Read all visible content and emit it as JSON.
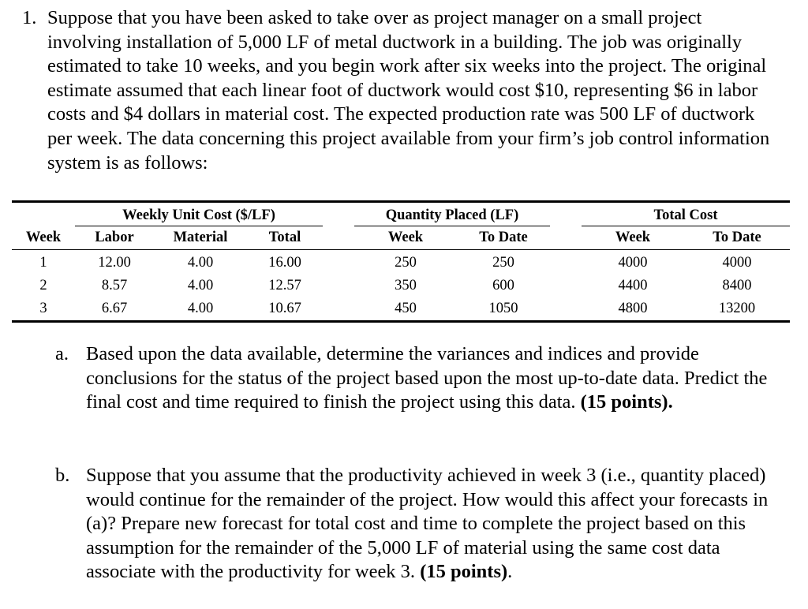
{
  "question": {
    "number": "1.",
    "text": "Suppose that you have been asked to take over as project manager on a small project involving installation of 5,000 LF of metal ductwork in a building. The job was originally estimated to take 10 weeks, and you begin work after six weeks into the project. The original estimate assumed that each linear foot of ductwork would cost $10, representing $6 in labor costs and $4 dollars in material cost. The expected production rate was 500 LF of ductwork per week. The data concerning this project available from your firm’s job control information system is as follows:"
  },
  "table": {
    "group_headers": {
      "unit_cost": "Weekly Unit Cost ($/LF)",
      "quantity": "Quantity Placed (LF)",
      "total_cost": "Total Cost"
    },
    "columns": {
      "week": "Week",
      "labor": "Labor",
      "material": "Material",
      "total": "Total",
      "qty_week": "Week",
      "qty_to_date": "To Date",
      "cost_week": "Week",
      "cost_to_date": "To Date"
    },
    "rows": [
      {
        "week": "1",
        "labor": "12.00",
        "material": "4.00",
        "total": "16.00",
        "qty_week": "250",
        "qty_to_date": "250",
        "cost_week": "4000",
        "cost_to_date": "4000"
      },
      {
        "week": "2",
        "labor": "8.57",
        "material": "4.00",
        "total": "12.57",
        "qty_week": "350",
        "qty_to_date": "600",
        "cost_week": "4400",
        "cost_to_date": "8400"
      },
      {
        "week": "3",
        "labor": "6.67",
        "material": "4.00",
        "total": "10.67",
        "qty_week": "450",
        "qty_to_date": "1050",
        "cost_week": "4800",
        "cost_to_date": "13200"
      }
    ]
  },
  "part_a": {
    "label": "a.",
    "text": "Based upon the data available, determine the variances and indices and provide conclusions for the status of the project based upon the most up-to-date data. Predict the final cost and time required to finish the project using this data.",
    "points": "(15 points)",
    "end": "."
  },
  "part_b": {
    "label": "b.",
    "text": "Suppose that you assume that the productivity achieved in week 3 (i.e., quantity placed) would continue for the remainder of the project. How would this affect your forecasts in (a)? Prepare new forecast for total cost and time to complete the project based on this assumption for the remainder of the 5,000 LF of material using the same cost data associate with the productivity for week 3.",
    "points": "(15 points)",
    "end": "."
  }
}
